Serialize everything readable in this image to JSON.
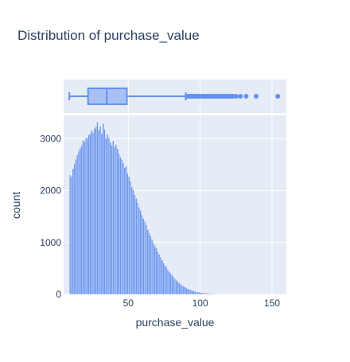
{
  "chart_data": {
    "type": "histogram",
    "title": "Distribution of purchase_value",
    "xlabel": "purchase_value",
    "ylabel": "count",
    "xlim": [
      5,
      160
    ],
    "ylim": [
      0,
      3450
    ],
    "x_ticks": [
      50,
      100,
      150
    ],
    "y_ticks": [
      0,
      1000,
      2000,
      3000
    ],
    "bin_width": 1,
    "bins": {
      "start": 9,
      "counts": [
        2300,
        2270,
        2420,
        2510,
        2600,
        2690,
        2760,
        2820,
        2870,
        2970,
        2950,
        3020,
        3010,
        3080,
        3090,
        3160,
        3120,
        3200,
        3230,
        3320,
        3170,
        3240,
        3100,
        3290,
        3180,
        3010,
        3090,
        3020,
        2930,
        2870,
        2960,
        2840,
        2890,
        2810,
        2710,
        2640,
        2600,
        2530,
        2440,
        2470,
        2330,
        2270,
        2180,
        2070,
        2010,
        1920,
        1850,
        1770,
        1680,
        1620,
        1530,
        1460,
        1410,
        1340,
        1250,
        1190,
        1130,
        1060,
        990,
        930,
        890,
        820,
        770,
        720,
        660,
        610,
        560,
        530,
        480,
        440,
        400,
        370,
        335,
        300,
        272,
        245,
        220,
        198,
        175,
        155,
        140,
        123,
        110,
        98,
        86,
        76,
        67,
        59,
        52,
        46,
        40,
        35,
        30,
        26,
        23,
        20,
        17,
        15,
        13,
        11,
        9,
        8,
        7,
        6,
        5,
        4,
        4,
        3,
        3,
        2,
        2,
        2,
        1,
        1,
        1,
        1,
        1,
        1,
        1,
        1,
        1,
        1,
        1,
        1,
        0,
        0,
        1,
        0,
        0,
        1,
        0,
        0,
        0,
        0,
        0,
        0,
        0,
        0,
        0,
        0,
        0,
        0,
        0,
        0,
        0,
        1
      ]
    },
    "boxplot": {
      "min": 9,
      "q1": 22,
      "median": 35,
      "q3": 49,
      "upper_fence": 90,
      "outliers": [
        91,
        92,
        93,
        94,
        95,
        96,
        97,
        98,
        99,
        100,
        101,
        102,
        103,
        104,
        105,
        106,
        107,
        108,
        109,
        110,
        111,
        112,
        113,
        114,
        115,
        116,
        117,
        118,
        119,
        120,
        121,
        122,
        123,
        125,
        128,
        132,
        139,
        154
      ]
    },
    "grid": true,
    "legend": "none",
    "colors": {
      "bar_fill": "#6b96ee",
      "bar_edge": "#ffffff",
      "box_fill": "#a9c0f5",
      "box_stroke": "#6392ee",
      "plot_bg": "#e5ecf6",
      "grid": "#ffffff",
      "text": "#2a3f5f"
    }
  }
}
